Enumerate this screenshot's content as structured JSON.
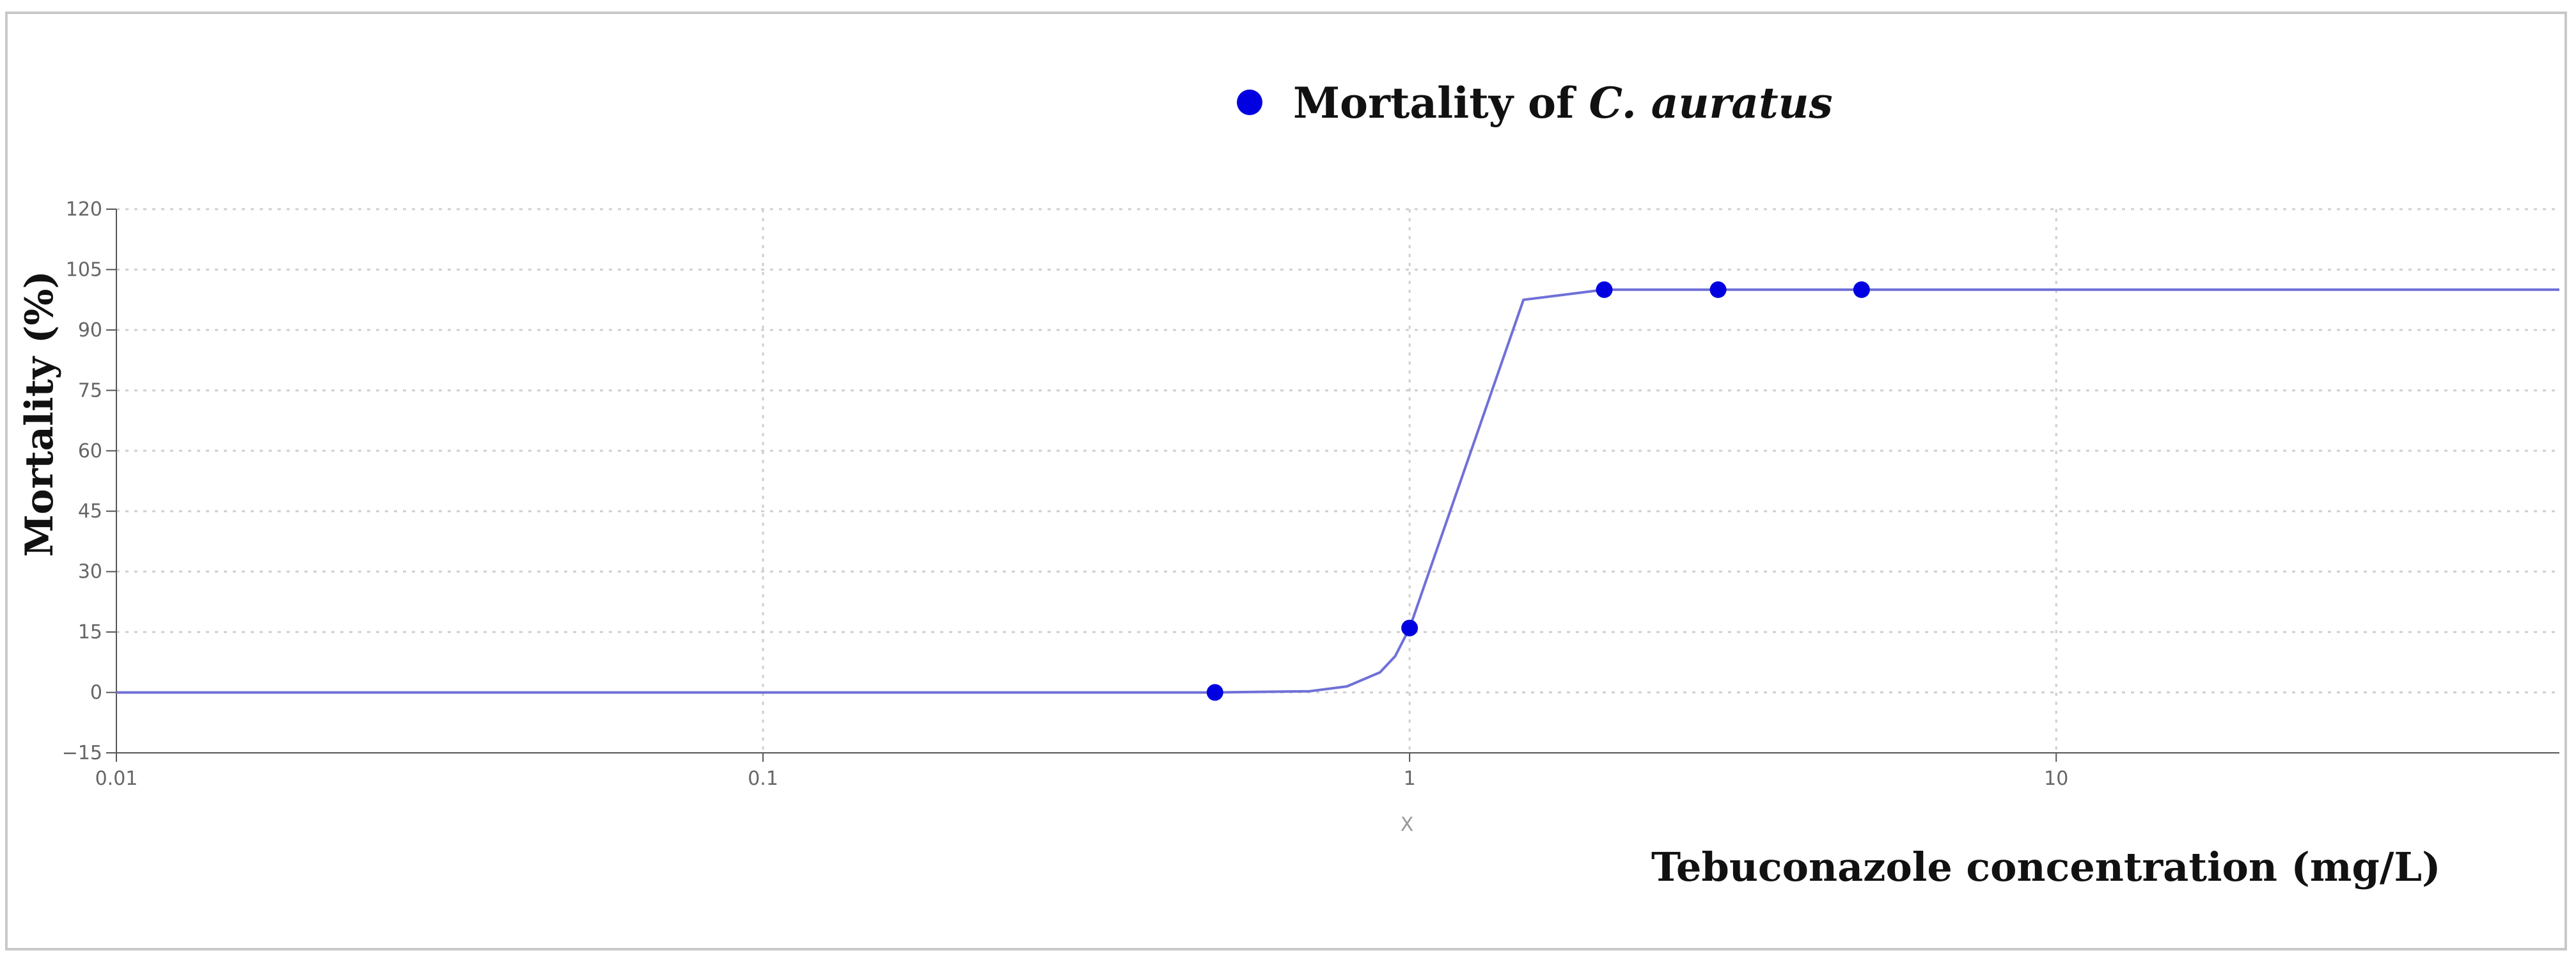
{
  "chart_data": {
    "type": "scatter",
    "legend": {
      "label_prefix": "Mortality of ",
      "label_species": "C. auratus",
      "placement": "top-center"
    },
    "xlabel": "Tebuconazole concentration (mg/L)",
    "x_axis_symbol": "X",
    "ylabel": "Mortality (%)",
    "x_scale": "log",
    "xlim": [
      0.01,
      60
    ],
    "ylim": [
      -15,
      120
    ],
    "x_ticks": [
      0.01,
      0.1,
      1,
      10
    ],
    "x_tick_labels": [
      "0.01",
      "0.1",
      "1",
      "10"
    ],
    "y_ticks": [
      -15,
      0,
      15,
      30,
      45,
      60,
      75,
      90,
      105,
      120
    ],
    "y_tick_labels": [
      "−15",
      "0",
      "15",
      "30",
      "45",
      "60",
      "75",
      "90",
      "105",
      "120"
    ],
    "grid": true,
    "series": [
      {
        "name": "Mortality of C. auratus",
        "kind": "points",
        "x": [
          0.5,
          1,
          2,
          3,
          5
        ],
        "y": [
          0,
          16,
          100,
          100,
          100
        ]
      },
      {
        "kind": "fitted-curve",
        "x": [
          0.01,
          0.5,
          0.7,
          0.8,
          0.9,
          0.95,
          1.0,
          1.5,
          2,
          60
        ],
        "y": [
          0,
          0,
          0.3,
          1.5,
          5,
          9,
          16,
          97.5,
          100,
          100
        ]
      }
    ],
    "colors": {
      "points": "#0000e0",
      "curve": "#7070d8",
      "grid": "#cfcfcf",
      "axis": "#555555"
    }
  }
}
